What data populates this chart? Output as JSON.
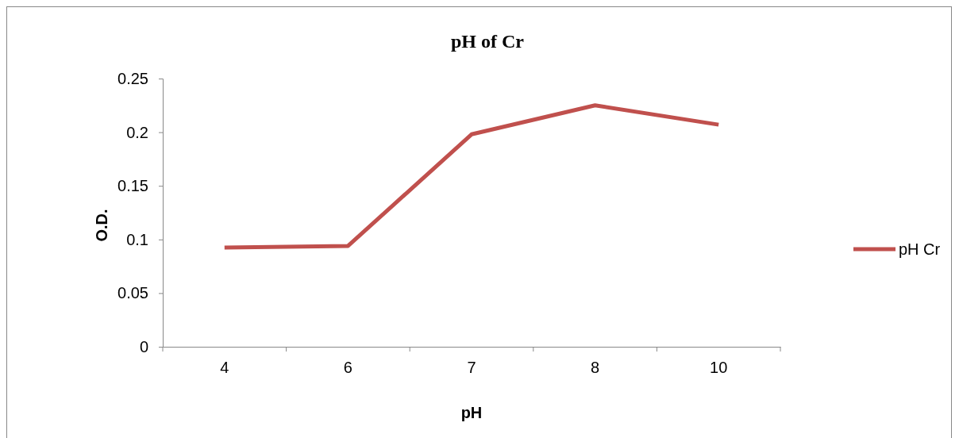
{
  "chart_data": {
    "type": "line",
    "title": "pH of Cr",
    "xlabel": "pH",
    "ylabel": "O.D.",
    "categories": [
      "4",
      "6",
      "7",
      "8",
      "10"
    ],
    "series": [
      {
        "name": "pH Cr",
        "color": "#c0504d",
        "values": [
          0.0925,
          0.094,
          0.198,
          0.225,
          0.207
        ]
      }
    ],
    "ylim": [
      0,
      0.25
    ],
    "yticks": [
      0,
      0.05,
      0.1,
      0.15,
      0.2,
      0.25
    ],
    "legend": "right",
    "grid": false,
    "marker": "none",
    "line_style": "solid"
  }
}
